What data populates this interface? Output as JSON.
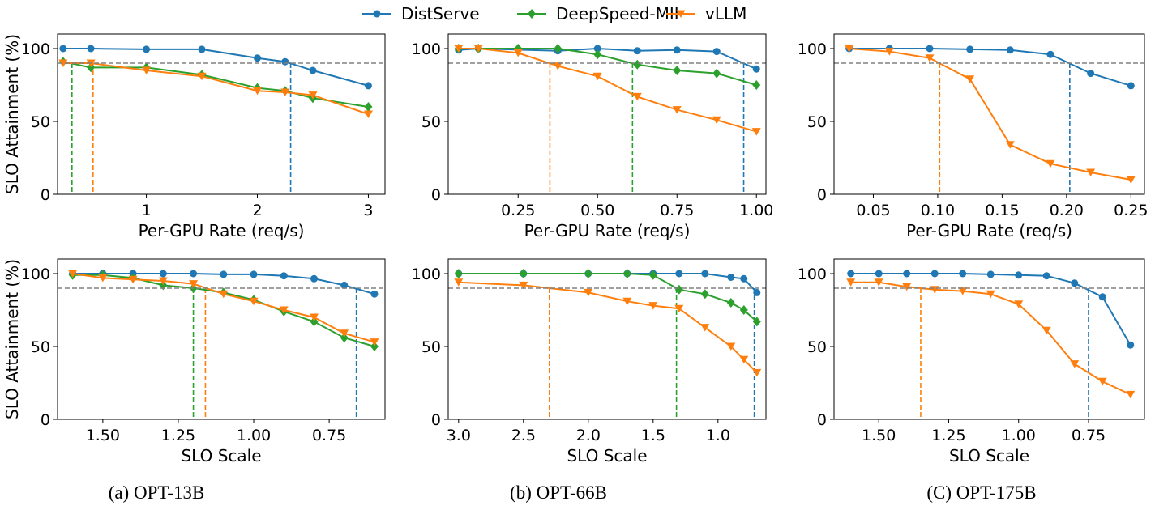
{
  "legend": {
    "position": "top-center",
    "entries": [
      {
        "label": "DistServe",
        "color": "#1f77b4",
        "marker": "circle"
      },
      {
        "label": "DeepSpeed-MII",
        "color": "#2ca02c",
        "marker": "diamond"
      },
      {
        "label": "vLLM",
        "color": "#ff7f0e",
        "marker": "triangle-down"
      }
    ]
  },
  "captions": [
    "(a) OPT-13B",
    "(b) OPT-66B",
    "(C) OPT-175B"
  ],
  "chart_data": [
    {
      "type": "line",
      "xlabel": "Per-GPU Rate (req/s)",
      "ylabel": "SLO Attainment (%)",
      "xlim": [
        0.2,
        3.15
      ],
      "ylim": [
        0,
        110
      ],
      "reversed_x": false,
      "xticks": [
        1,
        2,
        3
      ],
      "xtick_labels": [
        "1",
        "2",
        "3"
      ],
      "yticks": [
        0,
        50,
        100
      ],
      "ytick_labels": [
        "0",
        "50",
        "100"
      ],
      "threshold": 90,
      "vlines": [
        {
          "series": "DeepSpeed-MII",
          "x": 0.33
        },
        {
          "series": "vLLM",
          "x": 0.52
        },
        {
          "series": "DistServe",
          "x": 2.3
        }
      ],
      "series": [
        {
          "name": "DistServe",
          "x": [
            0.25,
            0.5,
            1.0,
            1.5,
            2.0,
            2.25,
            2.5,
            3.0
          ],
          "y": [
            100,
            100,
            99.5,
            99.5,
            93.5,
            91,
            85,
            74.5
          ]
        },
        {
          "name": "DeepSpeed-MII",
          "x": [
            0.25,
            0.5,
            1.0,
            1.5,
            2.0,
            2.25,
            2.5,
            3.0
          ],
          "y": [
            91,
            87,
            87,
            82,
            73,
            71,
            66,
            60
          ]
        },
        {
          "name": "vLLM",
          "x": [
            0.25,
            0.5,
            1.0,
            1.5,
            2.0,
            2.25,
            2.5,
            3.0
          ],
          "y": [
            90,
            90,
            85,
            81,
            71,
            70,
            68,
            55
          ]
        }
      ]
    },
    {
      "type": "line",
      "xlabel": "Per-GPU Rate (req/s)",
      "ylabel": "",
      "xlim": [
        0.03,
        1.03
      ],
      "ylim": [
        0,
        110
      ],
      "reversed_x": false,
      "xticks": [
        0.25,
        0.5,
        0.75,
        1.0
      ],
      "xtick_labels": [
        "0.25",
        "0.50",
        "0.75",
        "1.00"
      ],
      "yticks": [
        0,
        50,
        100
      ],
      "ytick_labels": [
        "0",
        "50",
        "100"
      ],
      "threshold": 90,
      "vlines": [
        {
          "series": "vLLM",
          "x": 0.35
        },
        {
          "series": "DeepSpeed-MII",
          "x": 0.61
        },
        {
          "series": "DistServe",
          "x": 0.96
        }
      ],
      "series": [
        {
          "name": "DistServe",
          "x": [
            0.0625,
            0.125,
            0.375,
            0.5,
            0.625,
            0.75,
            0.875,
            1.0
          ],
          "y": [
            99,
            100,
            98.5,
            100,
            98.5,
            99,
            98,
            86
          ]
        },
        {
          "name": "DeepSpeed-MII",
          "x": [
            0.0625,
            0.125,
            0.25,
            0.375,
            0.5,
            0.625,
            0.75,
            0.875,
            1.0
          ],
          "y": [
            100,
            100,
            100,
            100,
            96,
            89,
            85,
            83,
            75
          ]
        },
        {
          "name": "vLLM",
          "x": [
            0.0625,
            0.125,
            0.25,
            0.375,
            0.5,
            0.625,
            0.75,
            0.875,
            1.0
          ],
          "y": [
            100,
            100,
            97,
            88,
            81,
            67,
            58,
            51,
            43
          ]
        }
      ]
    },
    {
      "type": "line",
      "xlabel": "Per-GPU Rate (req/s)",
      "ylabel": "",
      "xlim": [
        0.0195,
        0.2605
      ],
      "ylim": [
        0,
        110
      ],
      "reversed_x": false,
      "xticks": [
        0.05,
        0.1,
        0.15,
        0.2,
        0.25
      ],
      "xtick_labels": [
        "0.05",
        "0.10",
        "0.15",
        "0.20",
        "0.25"
      ],
      "yticks": [
        0,
        50,
        100
      ],
      "ytick_labels": [
        "0",
        "50",
        "100"
      ],
      "threshold": 90,
      "vlines": [
        {
          "series": "vLLM",
          "x": 0.1015
        },
        {
          "series": "DistServe",
          "x": 0.2025
        }
      ],
      "series": [
        {
          "name": "DistServe",
          "x": [
            0.03125,
            0.0625,
            0.09375,
            0.125,
            0.15625,
            0.1875,
            0.21875,
            0.25
          ],
          "y": [
            100,
            100,
            100,
            99.5,
            99,
            96,
            83,
            74.5
          ]
        },
        {
          "name": "vLLM",
          "x": [
            0.03125,
            0.0625,
            0.09375,
            0.125,
            0.15625,
            0.1875,
            0.21875,
            0.25
          ],
          "y": [
            100,
            98,
            93.5,
            79,
            34,
            21,
            15,
            10
          ]
        }
      ]
    },
    {
      "type": "line",
      "xlabel": "SLO Scale",
      "ylabel": "SLO Attainment (%)",
      "xlim": [
        1.65,
        0.565
      ],
      "ylim": [
        0,
        110
      ],
      "reversed_x": true,
      "xticks": [
        1.5,
        1.25,
        1.0,
        0.75
      ],
      "xtick_labels": [
        "1.50",
        "1.25",
        "1.00",
        "0.75"
      ],
      "yticks": [
        0,
        50,
        100
      ],
      "ytick_labels": [
        "0",
        "50",
        "100"
      ],
      "threshold": 90,
      "vlines": [
        {
          "series": "DeepSpeed-MII",
          "x": 1.2
        },
        {
          "series": "vLLM",
          "x": 1.16
        },
        {
          "series": "DistServe",
          "x": 0.66
        }
      ],
      "series": [
        {
          "name": "DistServe",
          "x": [
            1.6,
            1.5,
            1.4,
            1.3,
            1.2,
            1.1,
            1.0,
            0.9,
            0.8,
            0.7,
            0.6
          ],
          "y": [
            100,
            100,
            100,
            100,
            100,
            99.5,
            99.5,
            98.5,
            96.5,
            92,
            86
          ]
        },
        {
          "name": "DeepSpeed-MII",
          "x": [
            1.6,
            1.5,
            1.4,
            1.3,
            1.2,
            1.1,
            1.0,
            0.9,
            0.8,
            0.7,
            0.6
          ],
          "y": [
            99,
            99,
            97,
            92,
            90,
            87,
            82,
            74,
            67,
            56,
            50
          ]
        },
        {
          "name": "vLLM",
          "x": [
            1.6,
            1.5,
            1.4,
            1.3,
            1.2,
            1.1,
            1.0,
            0.9,
            0.8,
            0.7,
            0.6
          ],
          "y": [
            100,
            97,
            96,
            95,
            93,
            86,
            81,
            75,
            70,
            59,
            53
          ]
        }
      ]
    },
    {
      "type": "line",
      "xlabel": "SLO Scale",
      "ylabel": "",
      "xlim": [
        3.08,
        0.63
      ],
      "ylim": [
        0,
        110
      ],
      "reversed_x": true,
      "xticks": [
        3.0,
        2.5,
        2.0,
        1.5,
        1.0
      ],
      "xtick_labels": [
        "3.0",
        "2.5",
        "2.0",
        "1.5",
        "1.0"
      ],
      "yticks": [
        0,
        50,
        100
      ],
      "ytick_labels": [
        "0",
        "50",
        "100"
      ],
      "threshold": 90,
      "vlines": [
        {
          "series": "vLLM",
          "x": 2.3
        },
        {
          "series": "DeepSpeed-MII",
          "x": 1.32
        },
        {
          "series": "DistServe",
          "x": 0.72
        }
      ],
      "series": [
        {
          "name": "DistServe",
          "x": [
            3.0,
            2.5,
            2.0,
            1.7,
            1.5,
            1.3,
            1.1,
            0.9,
            0.8,
            0.7
          ],
          "y": [
            100,
            100,
            100,
            100,
            100,
            100,
            100,
            97.5,
            96.5,
            87
          ]
        },
        {
          "name": "DeepSpeed-MII",
          "x": [
            3.0,
            2.5,
            2.0,
            1.7,
            1.5,
            1.3,
            1.1,
            0.9,
            0.8,
            0.7
          ],
          "y": [
            100,
            100,
            100,
            100,
            99,
            89,
            86,
            80,
            75,
            67
          ]
        },
        {
          "name": "vLLM",
          "x": [
            3.0,
            2.5,
            2.0,
            1.7,
            1.5,
            1.3,
            1.1,
            0.9,
            0.8,
            0.7
          ],
          "y": [
            94,
            92,
            87,
            81,
            78,
            76,
            63,
            50,
            41,
            32
          ]
        }
      ]
    },
    {
      "type": "line",
      "xlabel": "SLO Scale",
      "ylabel": "",
      "xlim": [
        1.66,
        0.55
      ],
      "ylim": [
        0,
        110
      ],
      "reversed_x": true,
      "xticks": [
        1.5,
        1.25,
        1.0,
        0.75
      ],
      "xtick_labels": [
        "1.50",
        "1.25",
        "1.00",
        "0.75"
      ],
      "yticks": [
        0,
        50,
        100
      ],
      "ytick_labels": [
        "0",
        "50",
        "100"
      ],
      "threshold": 90,
      "vlines": [
        {
          "series": "vLLM",
          "x": 1.35
        },
        {
          "series": "DistServe",
          "x": 0.75
        }
      ],
      "series": [
        {
          "name": "DistServe",
          "x": [
            1.6,
            1.5,
            1.4,
            1.3,
            1.2,
            1.1,
            1.0,
            0.9,
            0.8,
            0.7,
            0.6
          ],
          "y": [
            100,
            100,
            100,
            100,
            100,
            99.5,
            99,
            98.5,
            93.5,
            84,
            51
          ]
        },
        {
          "name": "vLLM",
          "x": [
            1.6,
            1.5,
            1.4,
            1.3,
            1.2,
            1.1,
            1.0,
            0.9,
            0.8,
            0.7,
            0.6
          ],
          "y": [
            94,
            94,
            91,
            89,
            88,
            86,
            79,
            61,
            38,
            26,
            17
          ]
        }
      ]
    }
  ]
}
